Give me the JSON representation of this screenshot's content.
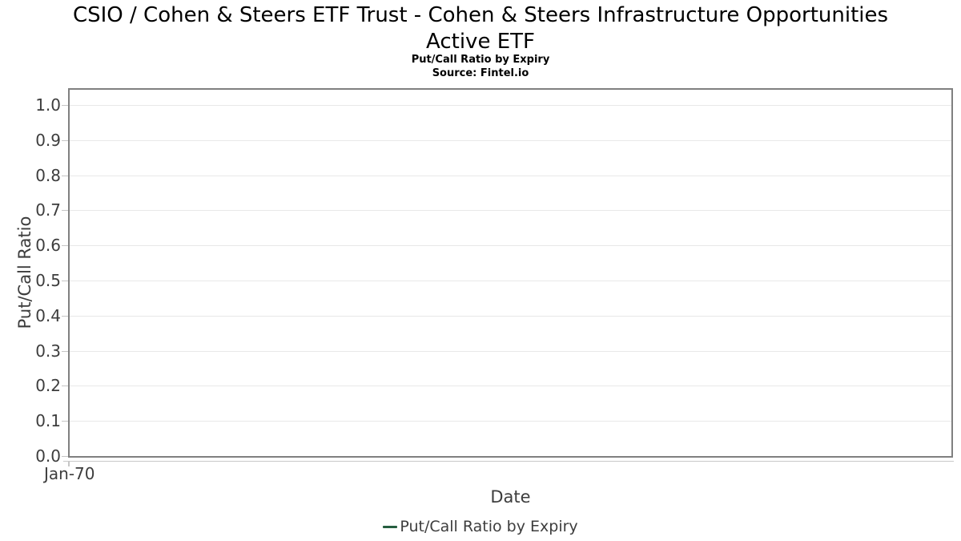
{
  "title": {
    "line1": "CSIO / Cohen & Steers ETF Trust - Cohen & Steers Infrastructure Opportunities",
    "line2": "Active ETF",
    "full": "CSIO / Cohen & Steers ETF Trust - Cohen & Steers Infrastructure Opportunities Active ETF"
  },
  "subtitle": "Put/Call Ratio by Expiry",
  "source": "Source: Fintel.io",
  "axes": {
    "y_label": "Put/Call Ratio",
    "x_label": "Date",
    "y_ticks": [
      "1.0",
      "0.9",
      "0.8",
      "0.7",
      "0.6",
      "0.5",
      "0.4",
      "0.3",
      "0.2",
      "0.1",
      "0.0"
    ],
    "x_ticks": [
      "Jan-70"
    ]
  },
  "legend": {
    "label": "Put/Call Ratio by Expiry",
    "marker_color": "#265e40"
  },
  "colors": {
    "plot_border": "#808080",
    "gridline": "#e8e8e8",
    "tick_mark": "#c6c6c6",
    "axis_text": "#3d3d3d",
    "title_text": "#000000",
    "series_green": "#265e40"
  },
  "chart_data": {
    "type": "line",
    "title": "CSIO / Cohen & Steers ETF Trust - Cohen & Steers Infrastructure Opportunities Active ETF",
    "subtitle": "Put/Call Ratio by Expiry",
    "source": "Source: Fintel.io",
    "xlabel": "Date",
    "ylabel": "Put/Call Ratio",
    "x": [],
    "x_tick_labels": [
      "Jan-70"
    ],
    "y_tick_labels": [
      1.0,
      0.9,
      0.8,
      0.7,
      0.6,
      0.5,
      0.4,
      0.3,
      0.2,
      0.1,
      0.0
    ],
    "ylim": [
      0.0,
      1.045
    ],
    "grid": "horizontal",
    "legend_position": "bottom-center",
    "series": [
      {
        "name": "Put/Call Ratio by Expiry",
        "color": "#265e40",
        "values": []
      }
    ]
  }
}
